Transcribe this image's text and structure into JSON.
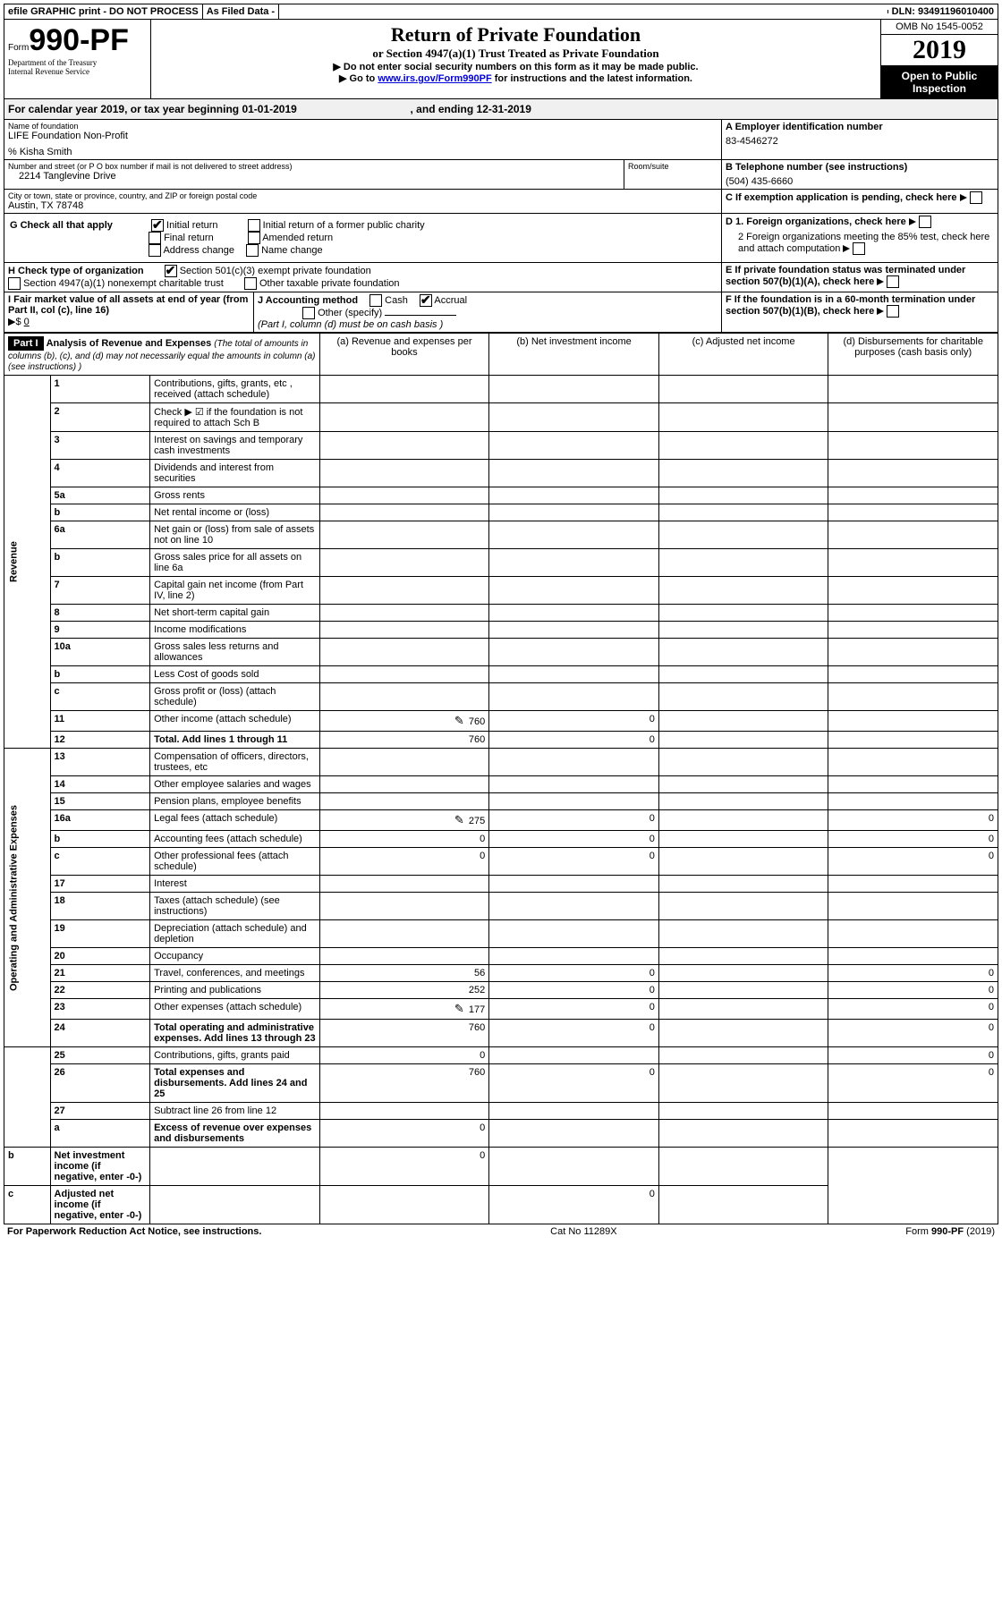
{
  "bar": {
    "efile": "efile GRAPHIC print - DO NOT PROCESS",
    "asfiled": "As Filed Data -",
    "dln": "DLN: 93491196010400"
  },
  "form": {
    "form": "Form",
    "num": "990-PF",
    "dept": "Department of the Treasury",
    "irs": "Internal Revenue Service"
  },
  "title": {
    "t1": "Return of Private Foundation",
    "t2": "or Section 4947(a)(1) Trust Treated as Private Foundation",
    "t3a": "▶ Do not enter social security numbers on this form as it may be made public.",
    "t3b": "▶ Go to ",
    "link": "www.irs.gov/Form990PF",
    "t3c": " for instructions and the latest information."
  },
  "right": {
    "omb": "OMB No 1545-0052",
    "year": "2019",
    "open": "Open to Public Inspection"
  },
  "cal": {
    "a": "For calendar year 2019, or tax year beginning 01-01-2019",
    "b": ", and ending 12-31-2019"
  },
  "A": {
    "lbl": "Name of foundation",
    "v": "LIFE Foundation Non-Profit",
    "care": "% Kisha Smith",
    "elbl": "A Employer identification number",
    "ein": "83-4546272"
  },
  "addr": {
    "lbl": "Number and street (or P O  box number if mail is not delivered to street address)",
    "v": "2214 Tanglevine Drive",
    "room": "Room/suite"
  },
  "B": {
    "lbl": "B Telephone number (see instructions)",
    "v": "(504) 435-6660"
  },
  "city": {
    "lbl": "City or town, state or province, country, and ZIP or foreign postal code",
    "v": "Austin, TX  78748"
  },
  "C": {
    "lbl": "C If exemption application is pending, check here"
  },
  "G": {
    "lbl": "G Check all that apply",
    "o": [
      "Initial return",
      "Initial return of a former public charity",
      "Final return",
      "Amended return",
      "Address change",
      "Name change"
    ]
  },
  "D": {
    "d1": "D 1. Foreign organizations, check here",
    "d2": "2 Foreign organizations meeting the 85% test, check here and attach computation"
  },
  "H": {
    "lbl": "H Check type of organization",
    "o": [
      "Section 501(c)(3) exempt private foundation",
      "Section 4947(a)(1) nonexempt charitable trust",
      "Other taxable private foundation"
    ]
  },
  "E": {
    "lbl": "E  If private foundation status was terminated under section 507(b)(1)(A), check here"
  },
  "I": {
    "lbl": "I Fair market value of all assets at end of year (from Part II, col  (c), line 16)",
    "arrow": "▶$",
    "v": "0"
  },
  "J": {
    "lbl": "J Accounting method",
    "cash": "Cash",
    "acc": "Accrual",
    "oth": "Other (specify)",
    "note": "(Part I, column (d) must be on cash basis )"
  },
  "F": {
    "lbl": "F  If the foundation is in a 60-month termination under section 507(b)(1)(B), check here"
  },
  "part1": {
    "hdr": "Part I",
    "title": "Analysis of Revenue and Expenses",
    "note": "(The total of amounts in columns (b), (c), and (d) may not necessarily equal the amounts in column (a) (see instructions) )",
    "cols": [
      "(a) Revenue and expenses per books",
      "(b) Net investment income",
      "(c) Adjusted net income",
      "(d) Disbursements for charitable purposes (cash basis only)"
    ]
  },
  "sidelabels": {
    "rev": "Revenue",
    "exp": "Operating and Administrative Expenses"
  },
  "lines": [
    {
      "n": "1",
      "d": "Contributions, gifts, grants, etc , received (attach schedule)"
    },
    {
      "n": "2",
      "d": "Check ▶ ☑ if the foundation is not required to attach Sch  B"
    },
    {
      "n": "3",
      "d": "Interest on savings and temporary cash investments"
    },
    {
      "n": "4",
      "d": "Dividends and interest from securities"
    },
    {
      "n": "5a",
      "d": "Gross rents"
    },
    {
      "n": "b",
      "d": "Net rental income or (loss)"
    },
    {
      "n": "6a",
      "d": "Net gain or (loss) from sale of assets not on line 10"
    },
    {
      "n": "b",
      "d": "Gross sales price for all assets on line 6a"
    },
    {
      "n": "7",
      "d": "Capital gain net income (from Part IV, line 2)"
    },
    {
      "n": "8",
      "d": "Net short-term capital gain"
    },
    {
      "n": "9",
      "d": "Income modifications"
    },
    {
      "n": "10a",
      "d": "Gross sales less returns and allowances"
    },
    {
      "n": "b",
      "d": "Less  Cost of goods sold"
    },
    {
      "n": "c",
      "d": "Gross profit or (loss) (attach schedule)"
    },
    {
      "n": "11",
      "d": "Other income (attach schedule)",
      "a": "760",
      "b": "0",
      "icon": true
    },
    {
      "n": "12",
      "d": "Total. Add lines 1 through 11",
      "a": "760",
      "b": "0",
      "bold": true
    },
    {
      "n": "13",
      "d": "Compensation of officers, directors, trustees, etc"
    },
    {
      "n": "14",
      "d": "Other employee salaries and wages"
    },
    {
      "n": "15",
      "d": "Pension plans, employee benefits"
    },
    {
      "n": "16a",
      "d": "Legal fees (attach schedule)",
      "a": "275",
      "b": "0",
      "dd": "0",
      "icon": true
    },
    {
      "n": "b",
      "d": "Accounting fees (attach schedule)",
      "a": "0",
      "b": "0",
      "dd": "0"
    },
    {
      "n": "c",
      "d": "Other professional fees (attach schedule)",
      "a": "0",
      "b": "0",
      "dd": "0"
    },
    {
      "n": "17",
      "d": "Interest"
    },
    {
      "n": "18",
      "d": "Taxes (attach schedule) (see instructions)"
    },
    {
      "n": "19",
      "d": "Depreciation (attach schedule) and depletion"
    },
    {
      "n": "20",
      "d": "Occupancy"
    },
    {
      "n": "21",
      "d": "Travel, conferences, and meetings",
      "a": "56",
      "b": "0",
      "dd": "0"
    },
    {
      "n": "22",
      "d": "Printing and publications",
      "a": "252",
      "b": "0",
      "dd": "0"
    },
    {
      "n": "23",
      "d": "Other expenses (attach schedule)",
      "a": "177",
      "b": "0",
      "dd": "0",
      "icon": true
    },
    {
      "n": "24",
      "d": "Total operating and administrative expenses. Add lines 13 through 23",
      "a": "760",
      "b": "0",
      "dd": "0",
      "bold": true
    },
    {
      "n": "25",
      "d": "Contributions, gifts, grants paid",
      "a": "0",
      "dd": "0"
    },
    {
      "n": "26",
      "d": "Total expenses and disbursements. Add lines 24 and 25",
      "a": "760",
      "b": "0",
      "dd": "0",
      "bold": true
    },
    {
      "n": "27",
      "d": "Subtract line 26 from line 12"
    },
    {
      "n": "a",
      "d": "Excess of revenue over expenses and disbursements",
      "a": "0",
      "bold": true
    },
    {
      "n": "b",
      "d": "Net investment income (if negative, enter -0-)",
      "b": "0",
      "bold": true
    },
    {
      "n": "c",
      "d": "Adjusted net income (if negative, enter -0-)",
      "c": "0",
      "bold": true
    }
  ],
  "footer": {
    "l": "For Paperwork Reduction Act Notice, see instructions.",
    "c": "Cat  No  11289X",
    "r": "Form 990-PF (2019)"
  }
}
